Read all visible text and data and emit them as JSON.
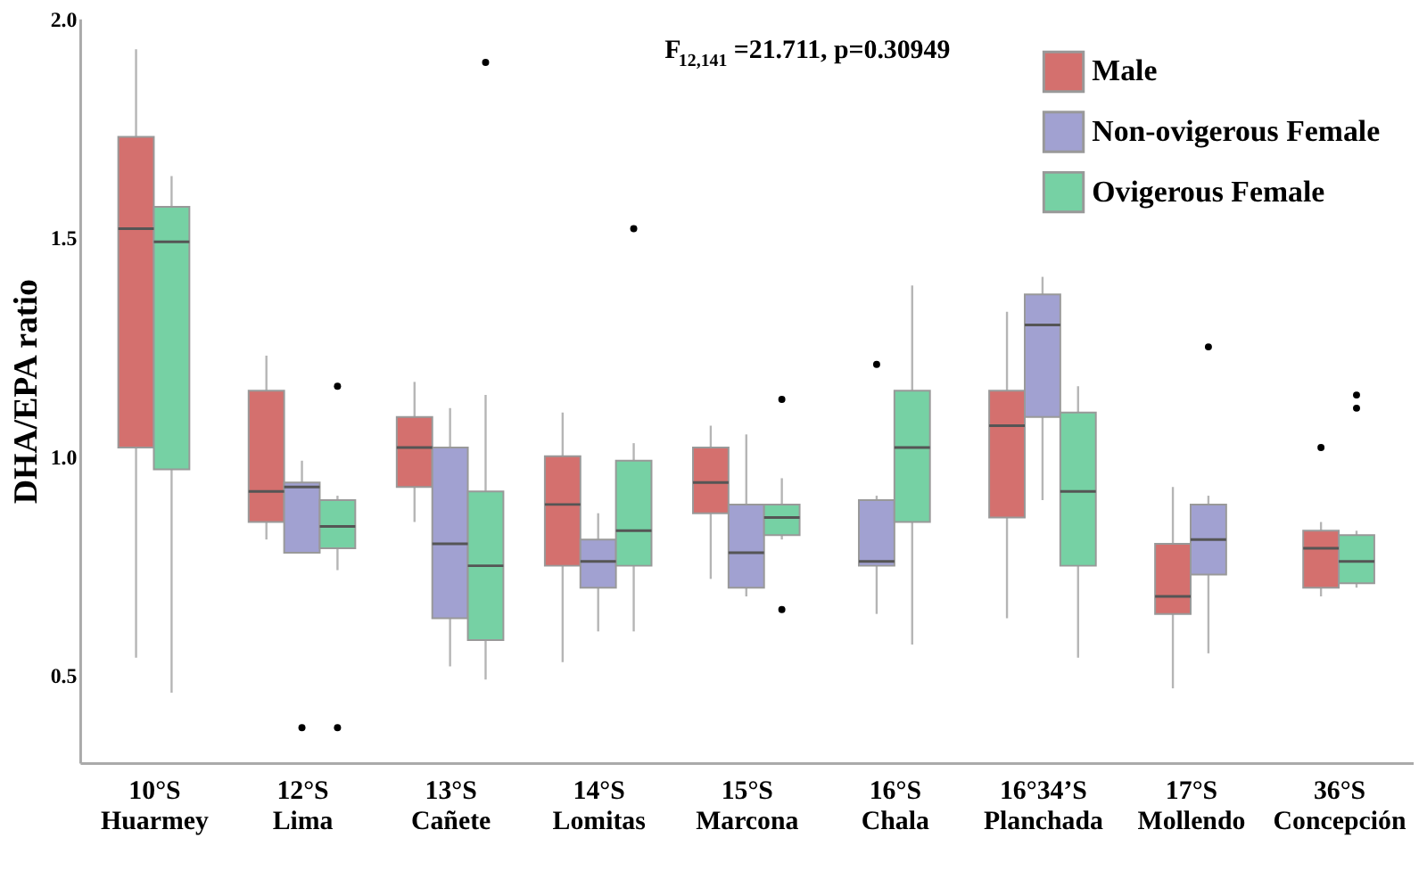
{
  "chart_data": {
    "type": "box",
    "ylabel": "DHA/EPA ratio",
    "categories": [
      "10°S\nHuarmey",
      "12°S\nLima",
      "13°S\nCañete",
      "14°S\nLomitas",
      "15°S\nMarcona",
      "16°S\nChala",
      "16°34’S\nPlanchada",
      "17°S\nMollendo",
      "36°S\nConcepción"
    ],
    "series": [
      {
        "name": "Male",
        "color": "#d4706e",
        "boxes": [
          {
            "low": 0.54,
            "q1": 1.02,
            "median": 1.52,
            "q3": 1.73,
            "high": 1.93
          },
          {
            "low": 0.81,
            "q1": 0.85,
            "median": 0.92,
            "q3": 1.15,
            "high": 1.23
          },
          {
            "low": 0.85,
            "q1": 0.93,
            "median": 1.02,
            "q3": 1.09,
            "high": 1.17
          },
          {
            "low": 0.53,
            "q1": 0.75,
            "median": 0.89,
            "q3": 1.0,
            "high": 1.1
          },
          {
            "low": 0.72,
            "q1": 0.87,
            "median": 0.94,
            "q3": 1.02,
            "high": 1.07
          },
          null,
          {
            "low": 0.63,
            "q1": 0.86,
            "median": 1.07,
            "q3": 1.15,
            "high": 1.33
          },
          {
            "low": 0.47,
            "q1": 0.64,
            "median": 0.68,
            "q3": 0.8,
            "high": 0.93
          },
          {
            "low": 0.68,
            "q1": 0.7,
            "median": 0.79,
            "q3": 0.83,
            "high": 0.85,
            "outliers": [
              1.02
            ]
          }
        ]
      },
      {
        "name": "Non-ovigerous Female",
        "color": "#a1a1d1",
        "boxes": [
          null,
          {
            "low": 0.78,
            "q1": 0.78,
            "median": 0.93,
            "q3": 0.94,
            "high": 0.99,
            "outliers": [
              0.38
            ]
          },
          {
            "low": 0.52,
            "q1": 0.63,
            "median": 0.8,
            "q3": 1.02,
            "high": 1.11
          },
          {
            "low": 0.6,
            "q1": 0.7,
            "median": 0.76,
            "q3": 0.81,
            "high": 0.87
          },
          {
            "low": 0.68,
            "q1": 0.7,
            "median": 0.78,
            "q3": 0.89,
            "high": 1.05
          },
          {
            "low": 0.64,
            "q1": 0.75,
            "median": 0.76,
            "q3": 0.9,
            "high": 0.91,
            "outliers": [
              1.21
            ]
          },
          {
            "low": 0.9,
            "q1": 1.09,
            "median": 1.3,
            "q3": 1.37,
            "high": 1.41
          },
          {
            "low": 0.55,
            "q1": 0.73,
            "median": 0.81,
            "q3": 0.89,
            "high": 0.91,
            "outliers": [
              1.25
            ]
          },
          null
        ]
      },
      {
        "name": "Ovigerous Female",
        "color": "#76d1a4",
        "boxes": [
          {
            "low": 0.46,
            "q1": 0.97,
            "median": 1.49,
            "q3": 1.57,
            "high": 1.64
          },
          {
            "low": 0.74,
            "q1": 0.79,
            "median": 0.84,
            "q3": 0.9,
            "high": 0.91,
            "outliers": [
              1.16,
              0.38
            ]
          },
          {
            "low": 0.49,
            "q1": 0.58,
            "median": 0.75,
            "q3": 0.92,
            "high": 1.14,
            "outliers": [
              1.9
            ]
          },
          {
            "low": 0.6,
            "q1": 0.75,
            "median": 0.83,
            "q3": 0.99,
            "high": 1.03,
            "outliers": [
              1.52
            ]
          },
          {
            "low": 0.81,
            "q1": 0.82,
            "median": 0.86,
            "q3": 0.89,
            "high": 0.95,
            "outliers": [
              1.13,
              0.65
            ]
          },
          {
            "low": 0.57,
            "q1": 0.85,
            "median": 1.02,
            "q3": 1.15,
            "high": 1.39
          },
          {
            "low": 0.54,
            "q1": 0.75,
            "median": 0.92,
            "q3": 1.1,
            "high": 1.16
          },
          null,
          {
            "low": 0.7,
            "q1": 0.71,
            "median": 0.76,
            "q3": 0.82,
            "high": 0.83,
            "outliers": [
              1.14,
              1.11
            ]
          }
        ]
      }
    ],
    "ylim": [
      0.3,
      2.0
    ],
    "yticks": [
      0.5,
      {
        "value": 1.0,
        "label": "1.0"
      },
      1.5,
      {
        "value": 2.0,
        "label": "2.0"
      }
    ],
    "legend": "top right",
    "annotations": [
      "F$_{12,141}$=21.711, p=0.30949"
    ]
  }
}
